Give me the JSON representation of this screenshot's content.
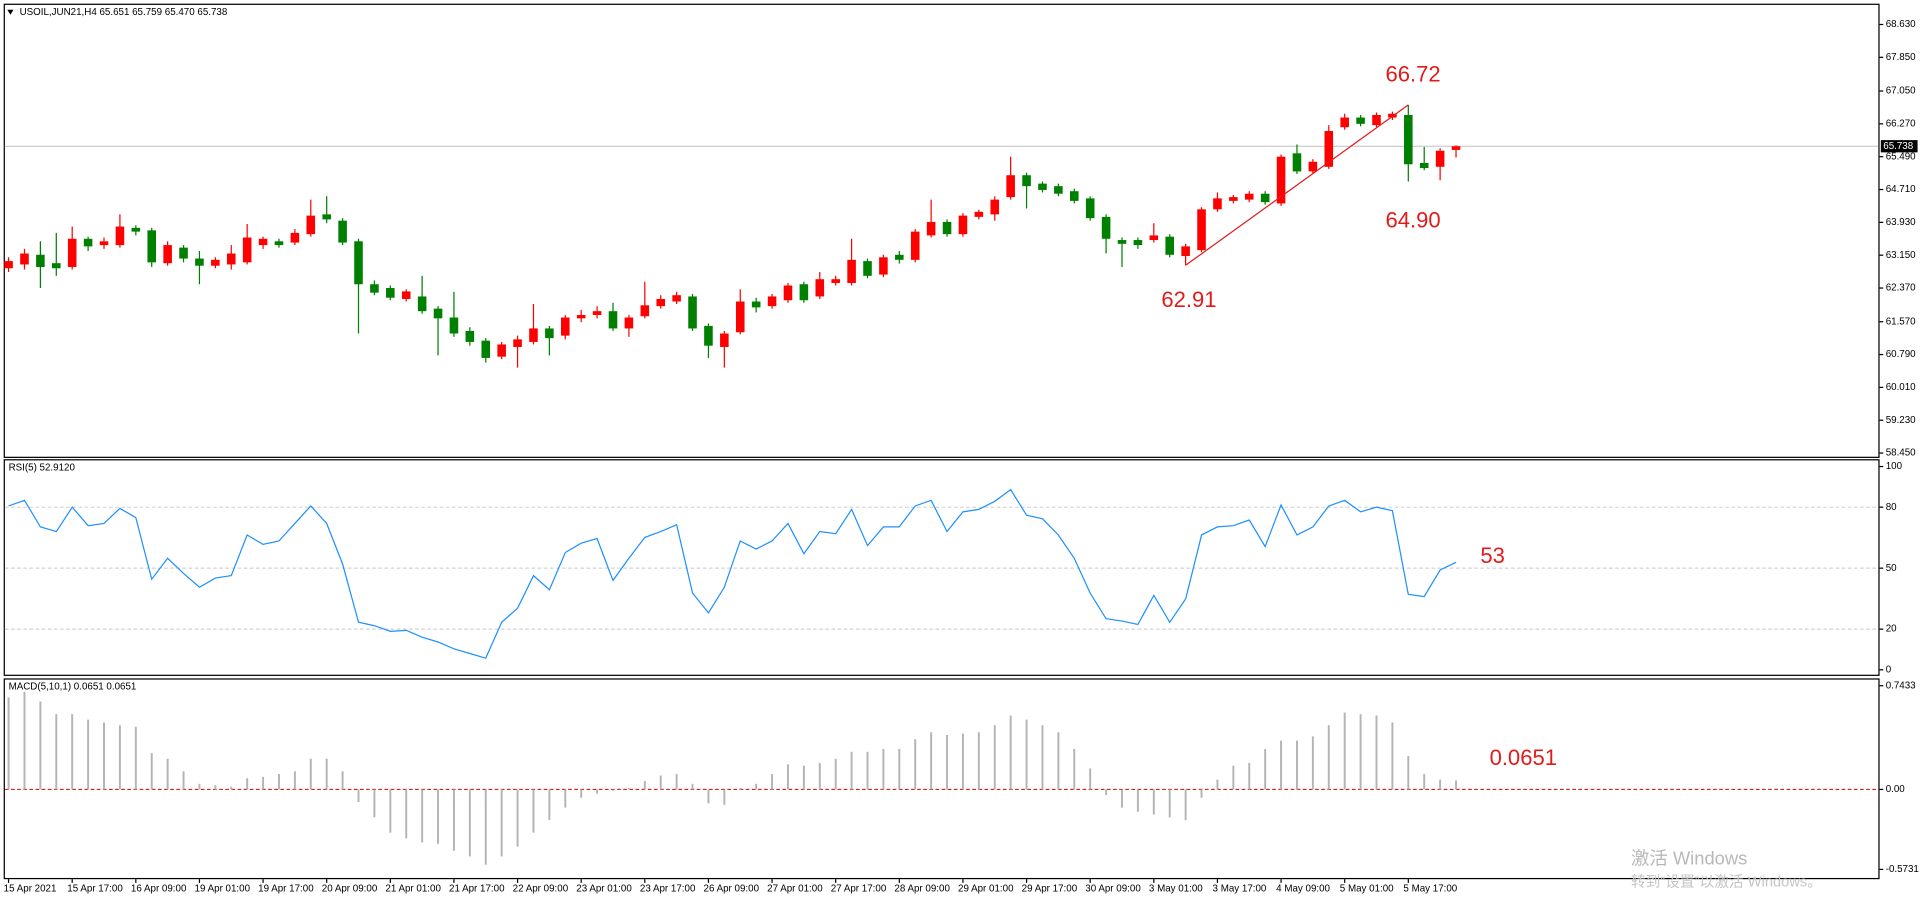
{
  "chart_data": [
    {
      "type": "candlestick",
      "title": "USOIL,JUN21,H4  65.651 65.759 65.470 65.738",
      "categories": [
        "15 Apr 2021",
        null,
        null,
        null,
        "15 Apr 17:00",
        null,
        null,
        null,
        "16 Apr 09:00",
        null,
        null,
        null,
        "19 Apr 01:00",
        null,
        null,
        null,
        "19 Apr 17:00",
        null,
        null,
        null,
        "20 Apr 09:00",
        null,
        null,
        null,
        "21 Apr 01:00",
        null,
        null,
        null,
        "21 Apr 17:00",
        null,
        null,
        null,
        "22 Apr 09:00",
        null,
        null,
        null,
        "23 Apr 01:00",
        null,
        null,
        null,
        "23 Apr 17:00",
        null,
        null,
        null,
        "26 Apr 09:00",
        null,
        null,
        null,
        "27 Apr 01:00",
        null,
        null,
        null,
        "27 Apr 17:00",
        null,
        null,
        null,
        "28 Apr 09:00",
        null,
        null,
        null,
        "29 Apr 01:00",
        null,
        null,
        null,
        "29 Apr 17:00",
        null,
        null,
        null,
        "30 Apr 09:00",
        null,
        null,
        null,
        "3 May 01:00",
        null,
        null,
        null,
        "3 May 17:00",
        null,
        null,
        null,
        "4 May 09:00",
        null,
        null,
        null,
        "5 May 01:00",
        null,
        null,
        null,
        "5 May 17:00",
        null,
        null,
        null
      ],
      "open": [
        62.84,
        62.93,
        63.16,
        62.96,
        62.87,
        63.54,
        63.39,
        63.39,
        63.8,
        63.74,
        62.96,
        63.33,
        63.07,
        62.9,
        62.93,
        62.98,
        63.39,
        63.48,
        63.45,
        63.65,
        64.12,
        63.97,
        63.48,
        62.46,
        62.37,
        62.11,
        62.17,
        61.88,
        61.67,
        61.35,
        61.12,
        60.74,
        60.97,
        61.09,
        61.41,
        61.24,
        61.65,
        61.73,
        61.82,
        61.41,
        61.7,
        61.94,
        62.05,
        62.17,
        61.47,
        60.97,
        61.32,
        62.05,
        61.94,
        62.08,
        62.46,
        62.17,
        62.49,
        62.49,
        63.01,
        62.69,
        63.16,
        63.04,
        63.62,
        63.94,
        63.65,
        64.06,
        64.12,
        64.53,
        65.05,
        64.85,
        64.79,
        64.67,
        64.5,
        64.06,
        63.51,
        63.51,
        63.51,
        63.59,
        63.13,
        63.27,
        64.24,
        64.44,
        64.47,
        64.61,
        64.38,
        65.57,
        65.14,
        65.25,
        66.19,
        66.42,
        66.24,
        66.42,
        66.48,
        65.34,
        65.25,
        65.651
      ],
      "high": [
        63.1,
        63.3,
        63.48,
        63.68,
        63.83,
        63.59,
        63.57,
        64.12,
        63.86,
        63.8,
        63.48,
        63.39,
        63.25,
        63.1,
        63.39,
        63.89,
        63.59,
        63.54,
        63.77,
        64.47,
        64.55,
        64.03,
        63.54,
        62.55,
        62.43,
        62.34,
        62.66,
        61.94,
        62.28,
        61.44,
        61.18,
        61.09,
        61.24,
        61.99,
        61.47,
        61.73,
        61.85,
        61.94,
        62.02,
        61.73,
        62.52,
        62.2,
        62.28,
        62.23,
        61.53,
        61.35,
        62.34,
        62.14,
        62.23,
        62.49,
        62.52,
        62.75,
        62.66,
        63.54,
        63.07,
        63.16,
        63.25,
        63.77,
        64.47,
        64.0,
        64.15,
        64.23,
        64.55,
        65.49,
        65.11,
        64.9,
        64.85,
        64.73,
        64.55,
        64.12,
        63.57,
        63.57,
        63.91,
        63.65,
        63.42,
        64.29,
        64.64,
        64.58,
        64.67,
        64.67,
        65.54,
        65.78,
        65.43,
        66.24,
        66.51,
        66.48,
        66.54,
        66.56,
        66.72,
        65.72,
        65.69,
        65.759
      ],
      "low": [
        62.75,
        62.81,
        62.37,
        62.66,
        62.81,
        63.25,
        63.3,
        63.33,
        63.62,
        62.87,
        62.9,
        62.98,
        62.46,
        62.84,
        62.81,
        62.93,
        63.3,
        63.33,
        63.39,
        63.59,
        63.91,
        63.39,
        61.29,
        62.2,
        62.08,
        62.05,
        61.76,
        60.77,
        61.21,
        61.0,
        60.6,
        60.68,
        60.48,
        61.03,
        60.77,
        61.15,
        61.56,
        61.65,
        61.35,
        61.21,
        61.65,
        61.88,
        61.99,
        61.35,
        60.71,
        60.48,
        61.27,
        61.79,
        61.88,
        62.02,
        62.02,
        62.11,
        62.43,
        62.43,
        62.6,
        62.63,
        62.95,
        62.98,
        63.57,
        63.59,
        63.59,
        64.0,
        63.97,
        64.47,
        64.26,
        64.64,
        64.55,
        64.38,
        63.97,
        63.19,
        62.87,
        63.3,
        63.45,
        63.1,
        62.91,
        63.22,
        64.18,
        64.38,
        64.41,
        64.35,
        64.32,
        65.08,
        65.08,
        65.2,
        66.13,
        66.21,
        66.19,
        66.36,
        64.9,
        65.17,
        64.93,
        65.47
      ],
      "close": [
        63.01,
        63.19,
        62.87,
        62.84,
        63.54,
        63.36,
        63.48,
        63.83,
        63.71,
        62.98,
        63.39,
        63.07,
        62.9,
        63.04,
        63.19,
        63.57,
        63.54,
        63.39,
        63.68,
        64.09,
        64.0,
        63.45,
        62.46,
        62.26,
        62.14,
        62.29,
        61.82,
        61.65,
        61.29,
        61.09,
        60.71,
        61.03,
        61.15,
        61.41,
        61.18,
        61.67,
        61.73,
        61.82,
        61.41,
        61.67,
        61.96,
        62.11,
        62.2,
        61.41,
        61.0,
        61.29,
        62.05,
        61.91,
        62.17,
        62.43,
        62.08,
        62.58,
        62.58,
        63.04,
        62.66,
        63.1,
        63.04,
        63.71,
        63.94,
        63.65,
        64.09,
        64.18,
        64.47,
        65.05,
        64.79,
        64.7,
        64.61,
        64.44,
        64.03,
        63.54,
        63.42,
        63.39,
        63.62,
        63.16,
        63.36,
        64.24,
        64.5,
        64.53,
        64.61,
        64.41,
        65.49,
        65.14,
        65.37,
        66.1,
        66.42,
        66.27,
        66.48,
        66.51,
        65.31,
        65.22,
        65.63,
        65.738
      ],
      "up_color": "#ff0000",
      "down_color": "#008000",
      "trend_color": "#e01b1b",
      "ylim": [
        58.45,
        68.63
      ],
      "yticks": [
        {
          "value": 68.63,
          "label": "68.630"
        },
        {
          "value": 67.85,
          "label": "67.850"
        },
        {
          "value": 67.05,
          "label": "67.050"
        },
        {
          "value": 66.27,
          "label": "66.270"
        },
        {
          "value": 65.49,
          "label": "65.490"
        },
        {
          "value": 64.71,
          "label": "64.710"
        },
        {
          "value": 63.93,
          "label": "63.930"
        },
        {
          "value": 63.15,
          "label": "63.150"
        },
        {
          "value": 62.37,
          "label": "62.370"
        },
        {
          "value": 61.57,
          "label": "61.570"
        },
        {
          "value": 60.79,
          "label": "60.790"
        },
        {
          "value": 60.01,
          "label": "60.010"
        },
        {
          "value": 59.23,
          "label": "59.230"
        },
        {
          "value": 58.45,
          "label": "58.450"
        }
      ],
      "grid": false,
      "last_price": {
        "value": 65.738,
        "label": "65.738"
      },
      "annotations": [
        "66.72",
        "64.90",
        "62.91"
      ]
    },
    {
      "type": "line",
      "title": "RSI(5) 52.9120",
      "values": [
        80.6,
        83.4,
        70.3,
        68.0,
        80.0,
        70.9,
        72.0,
        79.4,
        74.9,
        44.6,
        54.9,
        47.4,
        40.6,
        45.1,
        46.3,
        66.3,
        61.7,
        63.4,
        72.0,
        80.6,
        72.0,
        52.0,
        23.4,
        21.7,
        18.9,
        19.4,
        16.0,
        13.7,
        10.3,
        8.0,
        5.7,
        23.4,
        30.3,
        46.3,
        39.4,
        57.7,
        62.3,
        64.6,
        44.0,
        54.9,
        65.1,
        68.0,
        71.4,
        37.7,
        28.0,
        40.6,
        63.4,
        59.4,
        63.4,
        72.0,
        57.1,
        68.0,
        66.9,
        78.9,
        61.1,
        70.3,
        70.3,
        80.6,
        83.4,
        68.0,
        77.7,
        78.9,
        82.9,
        88.6,
        76.0,
        74.3,
        66.3,
        54.9,
        37.7,
        25.1,
        24.0,
        22.3,
        36.6,
        23.4,
        34.9,
        66.3,
        70.3,
        70.9,
        73.7,
        60.6,
        81.1,
        66.3,
        70.3,
        80.6,
        83.4,
        77.7,
        80.0,
        78.3,
        37.1,
        36.0,
        49.1,
        52.912
      ],
      "color": "#1e90ff",
      "ylim": [
        0,
        100
      ],
      "yticks": [
        100,
        80,
        50,
        20,
        0
      ],
      "grid": true,
      "grid_color": "#c8c8c8",
      "annotations": [
        "53"
      ]
    },
    {
      "type": "bar",
      "title": "MACD(5,10,1) 0.0651 0.0651",
      "values": [
        0.66,
        0.7,
        0.63,
        0.54,
        0.54,
        0.5,
        0.48,
        0.46,
        0.45,
        0.26,
        0.22,
        0.13,
        0.04,
        0.03,
        0.02,
        0.08,
        0.09,
        0.11,
        0.13,
        0.22,
        0.22,
        0.13,
        -0.09,
        -0.2,
        -0.31,
        -0.35,
        -0.38,
        -0.39,
        -0.44,
        -0.48,
        -0.54,
        -0.48,
        -0.41,
        -0.31,
        -0.22,
        -0.13,
        -0.06,
        -0.03,
        -0.01,
        0.01,
        0.06,
        0.1,
        0.11,
        0.04,
        -0.1,
        -0.11,
        0.01,
        0.04,
        0.11,
        0.18,
        0.17,
        0.19,
        0.22,
        0.27,
        0.27,
        0.29,
        0.29,
        0.36,
        0.41,
        0.39,
        0.4,
        0.41,
        0.46,
        0.53,
        0.5,
        0.46,
        0.41,
        0.29,
        0.15,
        -0.04,
        -0.13,
        -0.16,
        -0.18,
        -0.2,
        -0.22,
        -0.06,
        0.07,
        0.17,
        0.19,
        0.29,
        0.35,
        0.35,
        0.38,
        0.46,
        0.55,
        0.54,
        0.53,
        0.48,
        0.24,
        0.11,
        0.07,
        0.0651
      ],
      "color": "#b4b4b4",
      "ylim": [
        -0.5731,
        0.7433
      ],
      "yticks": [
        0.7433,
        {
          "value": 0,
          "label": "0.00"
        },
        -0.5731
      ],
      "grid": true,
      "grid_color": "#d00000",
      "annotations": [
        "0.0651"
      ]
    }
  ],
  "watermark": {
    "line1": "激活 Windows",
    "line2": "转到“设置”以激活 Windows。"
  }
}
